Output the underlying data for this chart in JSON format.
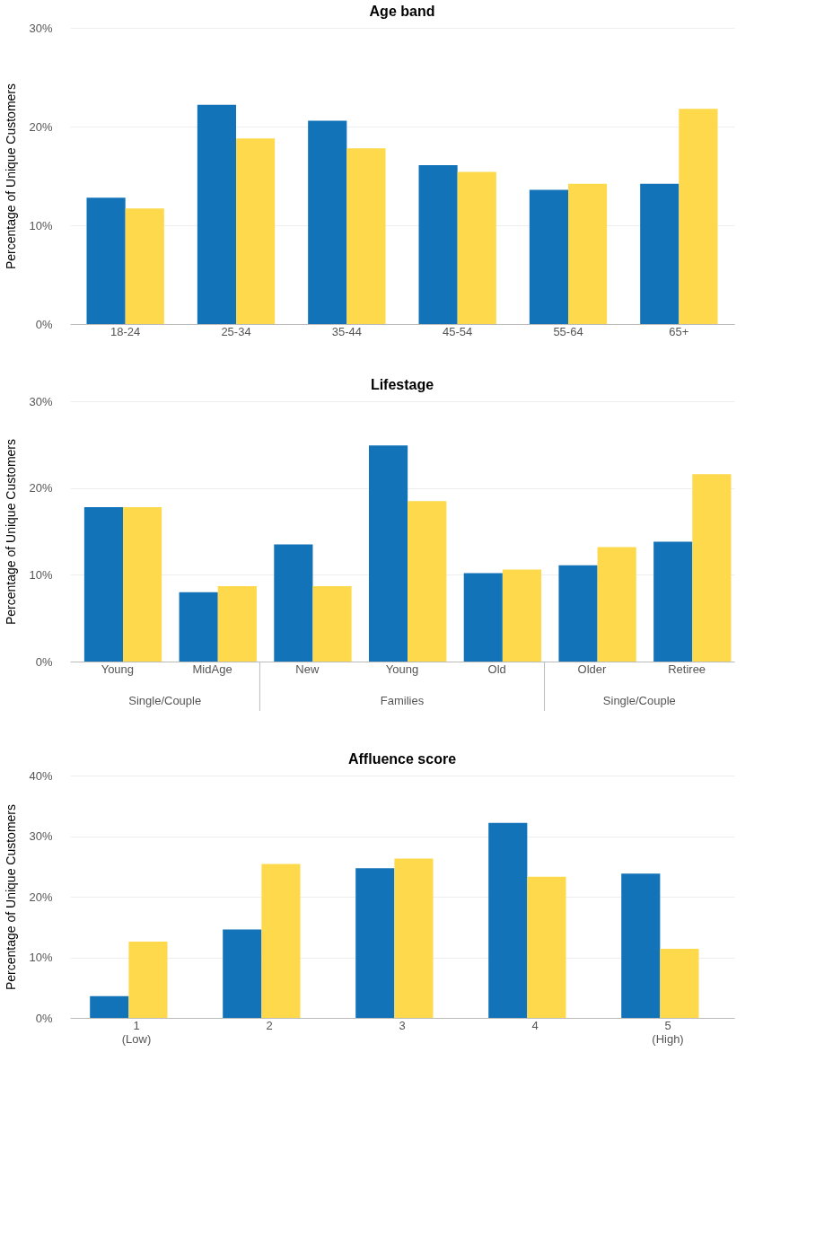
{
  "chart_data": [
    {
      "type": "bar",
      "title": "Age band",
      "ylabel": "Percentage of Unique Customers",
      "categories": [
        "18-24",
        "25-34",
        "35-44",
        "45-54",
        "55-64",
        "65+"
      ],
      "series": [
        {
          "color": "#1273b8",
          "values": [
            12.8,
            22.2,
            20.6,
            16.1,
            13.6,
            14.2
          ]
        },
        {
          "color": "#fdd94b",
          "values": [
            11.7,
            18.8,
            17.8,
            15.4,
            14.2,
            21.8
          ]
        }
      ],
      "ylim": [
        0,
        30
      ],
      "yticks": [
        {
          "value": 0,
          "label": "0%"
        },
        {
          "value": 10,
          "label": "10%"
        },
        {
          "value": 20,
          "label": "20%"
        },
        {
          "value": 30,
          "label": "30%"
        }
      ],
      "grid": "y",
      "legend": false
    },
    {
      "type": "bar",
      "title": "Lifestage",
      "ylabel": "Percentage of Unique Customers",
      "categories": [
        "Young",
        "MidAge",
        "New",
        "Young",
        "Old",
        "Older",
        "Retiree"
      ],
      "series": [
        {
          "color": "#1273b8",
          "values": [
            17.8,
            8.0,
            13.5,
            24.9,
            10.2,
            11.1,
            13.8
          ]
        },
        {
          "color": "#fdd94b",
          "values": [
            17.8,
            8.7,
            8.7,
            18.5,
            10.6,
            13.2,
            21.6
          ]
        }
      ],
      "annotations": [
        "Single/Couple",
        "Families",
        "Single/Couple"
      ],
      "ylim": [
        0,
        30
      ],
      "yticks": [
        {
          "value": 0,
          "label": "0%"
        },
        {
          "value": 10,
          "label": "10%"
        },
        {
          "value": 20,
          "label": "20%"
        },
        {
          "value": 30,
          "label": "30%"
        }
      ],
      "grid": "y",
      "legend": false
    },
    {
      "type": "bar",
      "title": "Affluence score",
      "ylabel": "Percentage of Unique Customers",
      "categories": [
        "1\n(Low)",
        "2",
        "3",
        "4",
        "5\n(High)"
      ],
      "series": [
        {
          "color": "#1273b8",
          "values": [
            3.6,
            14.6,
            24.7,
            32.2,
            23.8
          ]
        },
        {
          "color": "#fdd94b",
          "values": [
            12.6,
            25.4,
            26.3,
            23.3,
            11.4
          ]
        }
      ],
      "ylim": [
        0,
        40
      ],
      "yticks": [
        {
          "value": 0,
          "label": "0%"
        },
        {
          "value": 10,
          "label": "10%"
        },
        {
          "value": 20,
          "label": "20%"
        },
        {
          "value": 30,
          "label": "30%"
        },
        {
          "value": 40,
          "label": "40%"
        }
      ],
      "grid": "y",
      "legend": false
    }
  ]
}
